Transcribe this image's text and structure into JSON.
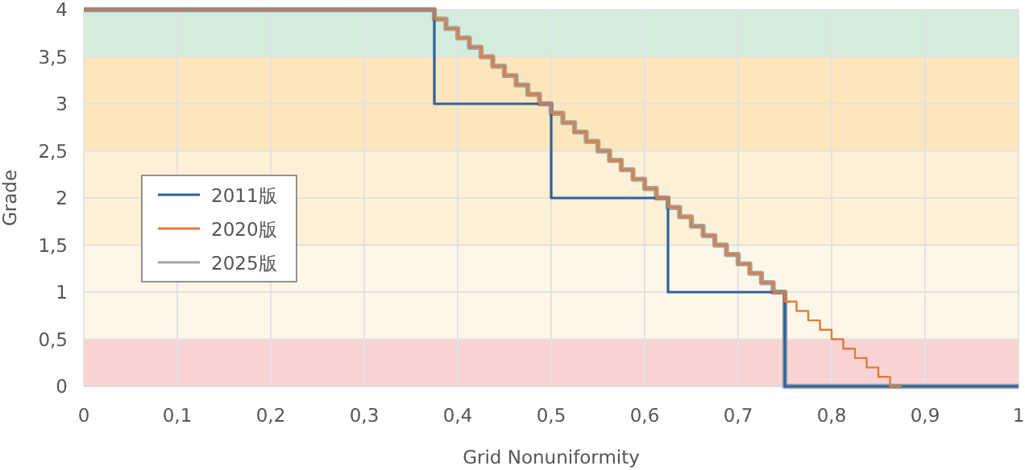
{
  "chart_data": {
    "type": "step",
    "xlabel": "Grid Nonuniformity",
    "ylabel": "Grade",
    "xlim": [
      0,
      1
    ],
    "ylim": [
      0,
      4
    ],
    "xticks": [
      0,
      {
        "value": 0.1,
        "label": "0,1"
      },
      {
        "value": 0.2,
        "label": "0,2"
      },
      {
        "value": 0.3,
        "label": "0,3"
      },
      {
        "value": 0.4,
        "label": "0,4"
      },
      {
        "value": 0.5,
        "label": "0,5"
      },
      {
        "value": 0.6,
        "label": "0,6"
      },
      {
        "value": 0.7,
        "label": "0,7"
      },
      {
        "value": 0.8,
        "label": "0,8"
      },
      {
        "value": 0.9,
        "label": "0,9"
      },
      1
    ],
    "yticks": [
      0,
      {
        "value": 0.5,
        "label": "0,5"
      },
      1,
      {
        "value": 1.5,
        "label": "1,5"
      },
      2,
      {
        "value": 2.5,
        "label": "2,5"
      },
      3,
      {
        "value": 3.5,
        "label": "3,5"
      },
      4
    ],
    "grid": true,
    "legend": "left",
    "bands": [
      {
        "axis": "y",
        "from": 3.5,
        "to": 4,
        "color": "#d5ecdd"
      },
      {
        "axis": "y",
        "from": 2.5,
        "to": 3.5,
        "color": "#fde6bc"
      },
      {
        "axis": "y",
        "from": 1.5,
        "to": 2.5,
        "color": "#fdf0d6"
      },
      {
        "axis": "y",
        "from": 0.5,
        "to": 1.5,
        "color": "#fef7e8"
      },
      {
        "axis": "y",
        "from": 0,
        "to": 0.5,
        "color": "#f9d3d4"
      }
    ],
    "series": [
      {
        "name": "2011版",
        "color": "#2d62a0",
        "x": [
          0,
          0.375,
          0.5,
          0.625,
          0.75,
          1
        ],
        "values": [
          4,
          3,
          2,
          1,
          0,
          0
        ]
      },
      {
        "name": "2020版",
        "color": "#e07b39",
        "x": [
          0,
          0.375,
          0.3875,
          0.4,
          0.4125,
          0.425,
          0.4375,
          0.45,
          0.4625,
          0.475,
          0.4875,
          0.5,
          0.5125,
          0.525,
          0.5375,
          0.55,
          0.5625,
          0.575,
          0.5875,
          0.6,
          0.6125,
          0.625,
          0.6375,
          0.65,
          0.6625,
          0.675,
          0.6875,
          0.7,
          0.7125,
          0.725,
          0.7375,
          0.75,
          0.7625,
          0.775,
          0.7875,
          0.8,
          0.8125,
          0.825,
          0.8375,
          0.85,
          0.8625,
          0.875
        ],
        "values": [
          4,
          3.9,
          3.8,
          3.7,
          3.6,
          3.5,
          3.4,
          3.3,
          3.2,
          3.1,
          3.0,
          2.9,
          2.8,
          2.7,
          2.6,
          2.5,
          2.4,
          2.3,
          2.2,
          2.1,
          2.0,
          1.9,
          1.8,
          1.7,
          1.6,
          1.5,
          1.4,
          1.3,
          1.2,
          1.1,
          1.0,
          0.9,
          0.8,
          0.7,
          0.6,
          0.5,
          0.4,
          0.3,
          0.2,
          0.1,
          0,
          0
        ]
      },
      {
        "name": "2025版",
        "color": "#a3a3a3",
        "x": [
          0,
          0.375,
          0.3875,
          0.4,
          0.4125,
          0.425,
          0.4375,
          0.45,
          0.4625,
          0.475,
          0.4875,
          0.5,
          0.5125,
          0.525,
          0.5375,
          0.55,
          0.5625,
          0.575,
          0.5875,
          0.6,
          0.6125,
          0.625,
          0.6375,
          0.65,
          0.6625,
          0.675,
          0.6875,
          0.7,
          0.7125,
          0.725,
          0.7375,
          0.75,
          1
        ],
        "values": [
          4,
          3.9,
          3.8,
          3.7,
          3.6,
          3.5,
          3.4,
          3.3,
          3.2,
          3.1,
          3.0,
          2.9,
          2.8,
          2.7,
          2.6,
          2.5,
          2.4,
          2.3,
          2.2,
          2.1,
          2.0,
          1.9,
          1.8,
          1.7,
          1.6,
          1.5,
          1.4,
          1.3,
          1.2,
          1.1,
          1.0,
          0,
          0
        ]
      }
    ]
  }
}
